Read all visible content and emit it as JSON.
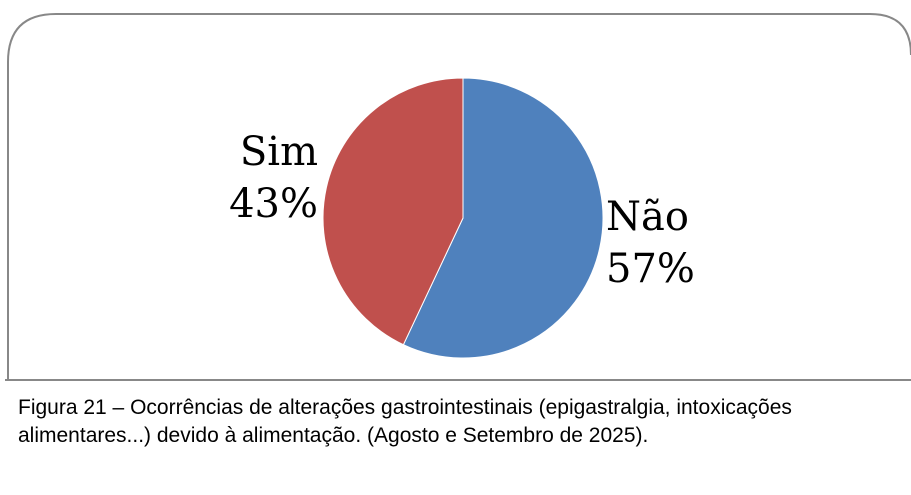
{
  "chart_data": {
    "type": "pie",
    "categories": [
      "Não",
      "Sim"
    ],
    "values": [
      57,
      43
    ],
    "value_labels": [
      "57%",
      "43%"
    ],
    "colors": [
      "#4f81bd",
      "#c0504d"
    ],
    "caption": "Figura 21 – Ocorrências de alterações gastrointestinais (epigastralgia, intoxicações alimentares...) devido à alimentação. (Agosto e Setembro de 2025)."
  }
}
